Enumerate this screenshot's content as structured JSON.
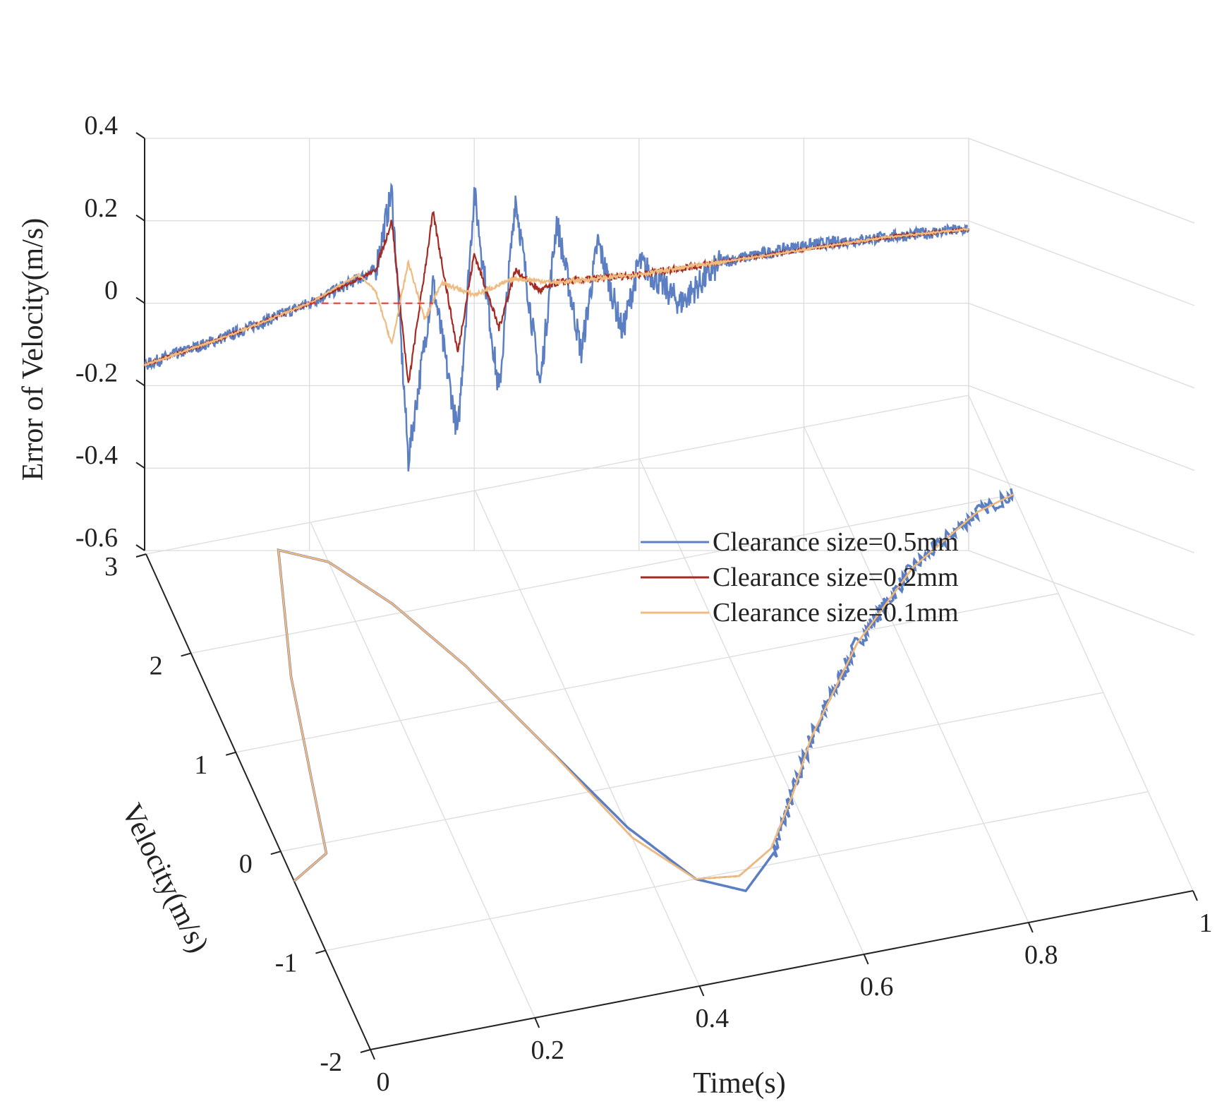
{
  "chart_data": {
    "type": "line",
    "subtype": "3d-line",
    "title": "",
    "xlabel": "Time(s)",
    "ylabel": "Velocity(m/s)",
    "zlabel": "Error of Velocity(m/s)",
    "xlim": [
      0,
      1
    ],
    "ylim": [
      -2,
      3
    ],
    "zlim": [
      -0.6,
      0.4
    ],
    "xticks": [
      "0",
      "0.2",
      "0.4",
      "0.6",
      "0.8",
      "1"
    ],
    "yticks": [
      "-2",
      "-1",
      "0",
      "1",
      "2",
      "3"
    ],
    "zticks": [
      "-0.6",
      "-0.4",
      "-0.2",
      "0",
      "0.2",
      "0.4"
    ],
    "legend_position": "right",
    "grid": true,
    "series": [
      {
        "name": "Clearance size=0.5mm",
        "color": "#5b7fc2",
        "velocity_x": [
          0,
          0.05,
          0.1,
          0.15,
          0.2,
          0.25,
          0.3,
          0.35,
          0.4,
          0.45,
          0.5,
          0.55,
          0.6,
          0.65,
          0.7,
          0.75,
          0.8,
          0.85,
          0.9,
          0.95,
          1.0
        ],
        "velocity_y": [
          -0.3,
          -0.1,
          1.6,
          2.8,
          2.6,
          2.1,
          1.4,
          0.5,
          -0.4,
          -1.0,
          -1.2,
          -0.9,
          -0.4,
          0.1,
          0.5,
          0.9,
          1.2,
          1.5,
          1.7,
          1.9,
          2.0
        ],
        "error_x": [
          0,
          0.1,
          0.2,
          0.28,
          0.3,
          0.32,
          0.35,
          0.38,
          0.4,
          0.43,
          0.45,
          0.48,
          0.5,
          0.53,
          0.55,
          0.58,
          0.6,
          0.65,
          0.7,
          0.75,
          0.8,
          0.9,
          1.0
        ],
        "error_y": [
          -0.15,
          -0.08,
          0.0,
          0.08,
          0.27,
          -0.38,
          0.05,
          -0.32,
          0.27,
          -0.22,
          0.26,
          -0.2,
          0.2,
          -0.12,
          0.15,
          -0.07,
          0.1,
          0.0,
          0.1,
          0.12,
          0.14,
          0.16,
          0.18
        ],
        "error_amplitude": 0.2
      },
      {
        "name": "Clearance size=0.2mm",
        "color": "#a52a22",
        "velocity_x": [
          0,
          0.05,
          0.1,
          0.15,
          0.2,
          0.25,
          0.3,
          0.35,
          0.4,
          0.45,
          0.5,
          0.55,
          0.6,
          0.65,
          0.7,
          0.75,
          0.8,
          0.85,
          0.9,
          0.95,
          1.0
        ],
        "velocity_y": [
          -0.3,
          -0.1,
          1.6,
          2.8,
          2.6,
          2.1,
          1.4,
          0.5,
          -0.5,
          -1.0,
          -1.05,
          -0.85,
          -0.4,
          0.1,
          0.5,
          0.9,
          1.2,
          1.5,
          1.7,
          1.9,
          2.0
        ],
        "error_x": [
          0,
          0.1,
          0.2,
          0.28,
          0.3,
          0.32,
          0.35,
          0.38,
          0.4,
          0.43,
          0.45,
          0.48,
          0.5,
          0.55,
          0.6,
          0.7,
          0.8,
          0.9,
          1.0
        ],
        "error_y": [
          -0.15,
          -0.08,
          0.0,
          0.08,
          0.2,
          -0.2,
          0.22,
          -0.12,
          0.12,
          -0.06,
          0.08,
          0.03,
          0.05,
          0.06,
          0.07,
          0.1,
          0.13,
          0.16,
          0.18
        ],
        "error_amplitude": 0.05
      },
      {
        "name": "Clearance size=0.1mm",
        "color": "#eebb80",
        "velocity_x": [
          0,
          0.05,
          0.1,
          0.15,
          0.2,
          0.25,
          0.3,
          0.35,
          0.4,
          0.45,
          0.5,
          0.55,
          0.6,
          0.65,
          0.7,
          0.75,
          0.8,
          0.85,
          0.9,
          0.95,
          1.0
        ],
        "velocity_y": [
          -0.3,
          -0.1,
          1.6,
          2.8,
          2.6,
          2.1,
          1.4,
          0.5,
          -0.5,
          -1.0,
          -1.05,
          -0.85,
          -0.4,
          0.1,
          0.5,
          0.9,
          1.2,
          1.5,
          1.7,
          1.9,
          2.0
        ],
        "error_x": [
          0,
          0.1,
          0.2,
          0.26,
          0.28,
          0.3,
          0.32,
          0.34,
          0.36,
          0.4,
          0.45,
          0.5,
          0.6,
          0.7,
          0.8,
          0.9,
          1.0
        ],
        "error_y": [
          -0.15,
          -0.08,
          0.0,
          0.07,
          0.03,
          -0.1,
          0.1,
          -0.04,
          0.05,
          0.02,
          0.06,
          0.05,
          0.07,
          0.1,
          0.13,
          0.16,
          0.18
        ],
        "error_amplitude": 0.03
      }
    ],
    "reference_line": {
      "name": "reference",
      "color": "#e8302a",
      "style": "dashed",
      "x": [
        0.2,
        0.35
      ],
      "error_y": [
        0.0,
        0.0
      ]
    }
  }
}
